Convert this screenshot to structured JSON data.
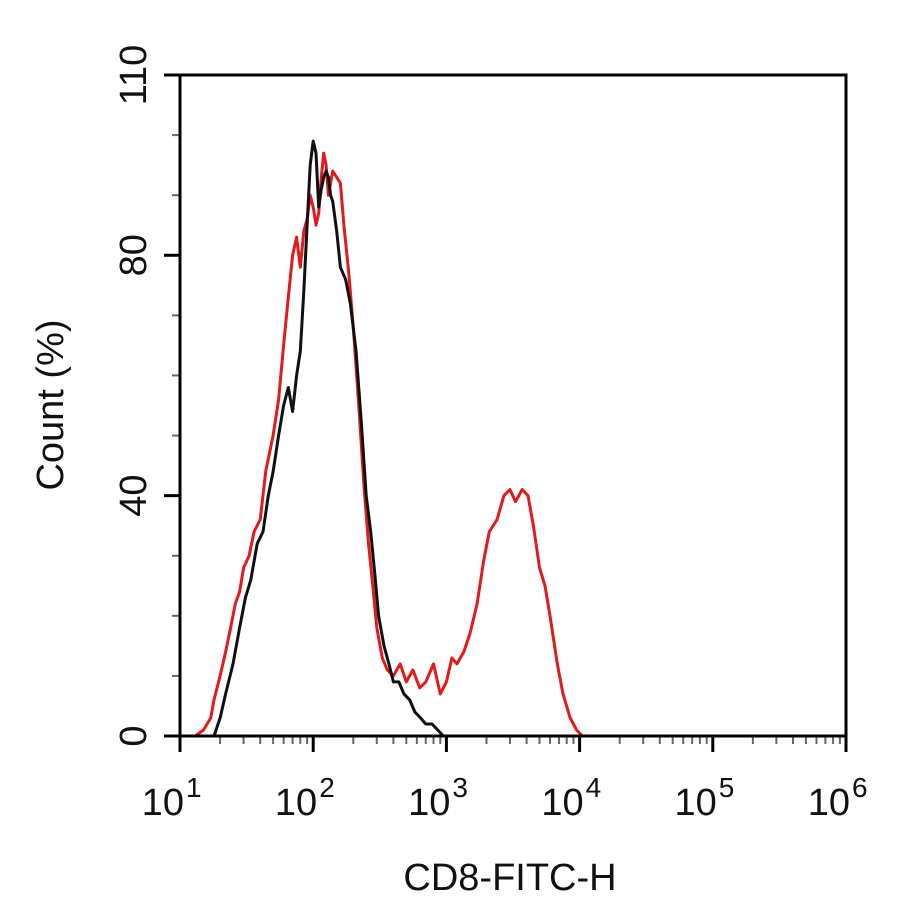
{
  "chart_data": {
    "type": "line",
    "xlabel": "CD8-FITC-H",
    "ylabel": "Count  (%)",
    "x_scale": "log",
    "xlim": [
      10,
      1000000
    ],
    "ylim": [
      0,
      110
    ],
    "x_ticks": [
      {
        "base": "10",
        "exp": "1"
      },
      {
        "base": "10",
        "exp": "2"
      },
      {
        "base": "10",
        "exp": "3"
      },
      {
        "base": "10",
        "exp": "4"
      },
      {
        "base": "10",
        "exp": "5"
      },
      {
        "base": "10",
        "exp": "6"
      }
    ],
    "x_tick_values": [
      10,
      100,
      1000,
      10000,
      100000,
      1000000
    ],
    "y_ticks": [
      "0",
      "40",
      "80",
      "110"
    ],
    "y_tick_values": [
      0,
      40,
      80,
      110
    ],
    "grid": false,
    "legend": "none",
    "series": [
      {
        "color": "#e31a1c",
        "x": [
          13,
          15,
          17,
          18,
          20,
          22,
          24,
          26,
          28,
          30,
          33,
          36,
          40,
          44,
          50,
          55,
          60,
          65,
          70,
          75,
          80,
          85,
          90,
          95,
          100,
          105,
          110,
          115,
          120,
          125,
          130,
          140,
          150,
          160,
          170,
          185,
          200,
          220,
          240,
          260,
          280,
          300,
          330,
          360,
          400,
          450,
          500,
          560,
          630,
          700,
          800,
          900,
          1000,
          1100,
          1200,
          1350,
          1500,
          1700,
          1900,
          2100,
          2400,
          2700,
          3000,
          3300,
          3700,
          4100,
          4500,
          5000,
          5500,
          6000,
          6800,
          7500,
          8500,
          9500,
          10500,
          12000,
          13500,
          15000
        ],
        "y": [
          0,
          1,
          3,
          6,
          10,
          14,
          18,
          22,
          24,
          28,
          30,
          34,
          36,
          44,
          50,
          56,
          65,
          73,
          80,
          83,
          78,
          84,
          86,
          90,
          88,
          85,
          87,
          93,
          97,
          95,
          90,
          94,
          93,
          92,
          85,
          77,
          68,
          55,
          42,
          32,
          25,
          18,
          13,
          11,
          10,
          12,
          9,
          11,
          8,
          9,
          12,
          7,
          9,
          13,
          12,
          14,
          17,
          22,
          29,
          34,
          36,
          40,
          41,
          39,
          41,
          40,
          35,
          28,
          25,
          20,
          12,
          7,
          3,
          1,
          0,
          0,
          0,
          0
        ]
      },
      {
        "color": "#111111",
        "x": [
          18,
          20,
          22,
          25,
          28,
          31,
          34,
          38,
          42,
          46,
          50,
          55,
          60,
          65,
          70,
          75,
          80,
          85,
          90,
          95,
          100,
          105,
          110,
          115,
          120,
          125,
          130,
          135,
          140,
          150,
          160,
          175,
          190,
          210,
          230,
          250,
          270,
          290,
          310,
          340,
          370,
          400,
          440,
          480,
          530,
          580,
          640,
          700,
          780,
          860,
          950
        ],
        "y": [
          0,
          3,
          7,
          12,
          18,
          23,
          26,
          32,
          34,
          40,
          44,
          50,
          55,
          58,
          54,
          60,
          64,
          74,
          85,
          95,
          99,
          97,
          88,
          91,
          93,
          94,
          93,
          90,
          89,
          84,
          78,
          76,
          72,
          64,
          52,
          40,
          34,
          27,
          20,
          15,
          12,
          9,
          9,
          7,
          6,
          4,
          3,
          2,
          2,
          1,
          0
        ]
      }
    ]
  }
}
